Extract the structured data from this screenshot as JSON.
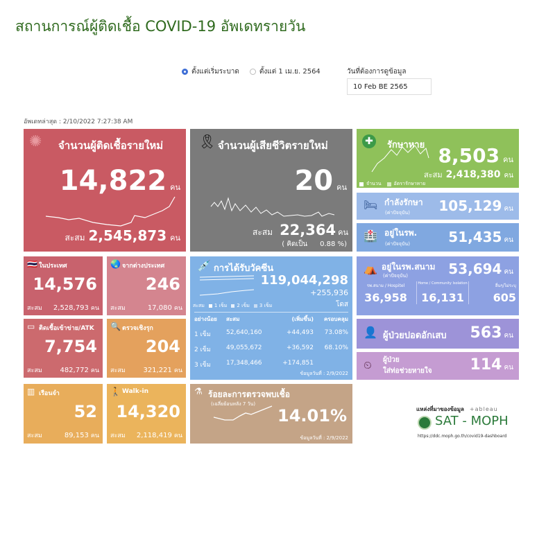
{
  "title": "สถานการณ์ผู้ติดเชื้อ COVID-19 อัพเดทรายวัน",
  "filters": {
    "radio_since_start": "ตั้งแต่เริ่มระบาด",
    "radio_since_apr": "ตั้งแต่ 1 เม.ย. 2564",
    "selected": "since_start",
    "date_label": "วันที่ต้องการดูข้อมูล",
    "date_value": "10 Feb BE 2565"
  },
  "last_update": "อัพเดทล่าสุด : 2/10/2022 7:27:38 AM",
  "unit": "คน",
  "cum_label": "สะสม",
  "new_cases": {
    "title": "จำนวนผู้ติดเชื้อรายใหม่",
    "value": "14,822",
    "cumulative": "2,545,873"
  },
  "deaths": {
    "title": "จำนวนผู้เสียชีวิตรายใหม่",
    "value": "20",
    "cumulative": "22,364",
    "rate_label": "( คิดเป็น",
    "rate": "0.88 %)"
  },
  "recovered": {
    "title": "รักษาหาย",
    "value": "8,503",
    "cumulative": "2,418,380",
    "legend_count": "จำนวน",
    "legend_rate": "อัตรารักษาหาย"
  },
  "treating": {
    "title": "กำลังรักษา",
    "sub": "(ค่าปัจจุบัน)",
    "value": "105,129"
  },
  "in_hospital": {
    "title": "อยู่ในรพ.",
    "sub": "(ค่าปัจจุบัน)",
    "value": "51,435"
  },
  "domestic": {
    "title": "ในประเทศ",
    "value": "14,576",
    "cumulative": "2,528,793"
  },
  "abroad": {
    "title": "จากต่างประเทศ",
    "value": "246",
    "cumulative": "17,080"
  },
  "atk": {
    "title": "ติดเชื้อเข้าข่าย/ATK",
    "value": "7,754",
    "cumulative": "482,772"
  },
  "proactive": {
    "title": "ตรวจเชิงรุก",
    "value": "204",
    "cumulative": "321,221"
  },
  "prison": {
    "title": "เรือนจำ",
    "value": "52",
    "cumulative": "89,153"
  },
  "walkin": {
    "title": "Walk-in",
    "value": "14,320",
    "cumulative": "2,118,419"
  },
  "vaccine": {
    "title": "การได้รับวัคซีน",
    "total": "119,044,298",
    "increase": "+255,936",
    "unit": "โดส",
    "legend": [
      "สะสม",
      "1 เข็ม",
      "2 เข็ม",
      "3 เข็ม"
    ],
    "headers": [
      "อย่างน้อย",
      "สะสม",
      "(เพิ่มขึ้น)",
      "ครอบคลุม"
    ],
    "rows": [
      [
        "1 เข็ม",
        "52,640,160",
        "+44,493",
        "73.08%"
      ],
      [
        "2 เข็ม",
        "49,055,672",
        "+36,592",
        "68.10%"
      ],
      [
        "3 เข็ม",
        "17,348,466",
        "+174,851",
        ""
      ]
    ],
    "data_date": "ข้อมูลวันที่ : 2/9/2022"
  },
  "positivity": {
    "title": "ร้อยละการตรวจพบเชื้อ",
    "sub": "(เฉลี่ยย้อนหลัง 7 วัน)",
    "value": "14.01%",
    "data_date": "ข้อมูลวันที่ : 2/9/2022"
  },
  "field_hospital": {
    "title": "อยู่ในรพ.สนาม",
    "sub": "(ค่าปัจจุบัน)",
    "value": "53,694",
    "cols": [
      [
        "รพ.สนาม / Hospitel",
        "36,958"
      ],
      [
        "Home / Community Isolation",
        "16,131"
      ],
      [
        "อื่นๆ/ไม่ระบุ",
        "605"
      ]
    ]
  },
  "pneumonia": {
    "title": "ผู้ป่วยปอดอักเสบ",
    "value": "563"
  },
  "ventilator": {
    "title1": "ผู้ป่วย",
    "title2": "ใส่ท่อช่วยหายใจ",
    "value": "114"
  },
  "source": {
    "label": "แหล่งที่มาของข้อมูล",
    "tableau": "+ableau",
    "brand": "SAT - MOPH",
    "url": "https://ddc.moph.go.th/covid19-dashboard"
  }
}
